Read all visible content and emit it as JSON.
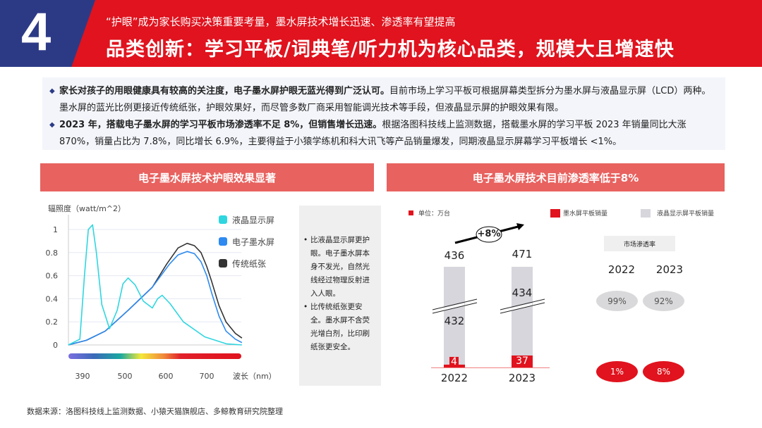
{
  "header": {
    "number": "4",
    "subtitle": "“护眼”成为家长购买决策重要考量，墨水屏技术增长迅速、渗透率有望提高",
    "title": "品类创新：学习平板/词典笔/听力机为核心品类，规模大且增速快",
    "colors": {
      "red": "#e0131e",
      "navy": "#2c3a86"
    }
  },
  "summary": [
    {
      "bold": "家长对孩子的用眼健康具有较高的关注度，电子墨水屏护眼无蓝光得到广泛认可。",
      "text": "目前市场上学习平板可根据屏幕类型拆分为墨水屏与液晶显示屏（LCD）两种。墨水屏的蓝光比例更接近传统纸张，护眼效果好，而尽管多数厂商采用智能调光技术等手段，但液晶显示屏的护眼效果有限。"
    },
    {
      "bold": "2023 年，搭载电子墨水屏的学习平板市场渗透率不足 8%，但销售增长迅速。",
      "text": "根据洛图科技线上监测数据，搭载墨水屏的学习平板 2023 年销量同比大涨 870%，销量占比为 7.8%，同比增长 6.9%，主要得益于小猿学练机和科大讯飞等产品销量爆发，同期液晶显示屏幕学习平板增长 <1%。"
    }
  ],
  "left_section": {
    "title": "电子墨水屏技术护眼效果显著",
    "notes": [
      "比液晶显示屏更护眼。电子墨水屏本身不发光，自然光线经过物理反射进入人眼。",
      "比传统纸张更安全。墨水屏不含荧光增白剂，比印刷纸张更安全。"
    ]
  },
  "right_section": {
    "title": "电子墨水屏技术目前渗透率低于8%"
  },
  "chart_data": [
    {
      "type": "line",
      "ylabel": "辐照度（watt/m^2）",
      "xlabel": "波长（nm）",
      "yticks": [
        "0",
        "0.2",
        "0.4",
        "0.6",
        "0.8",
        "1"
      ],
      "xticks": [
        "390",
        "500",
        "600",
        "700"
      ],
      "ylim": [
        0,
        1.1
      ],
      "grid": true,
      "legend": "top-right",
      "series": [
        {
          "name": "液晶显示屏",
          "color": "#2fd6e0",
          "points": [
            [
              353,
              0
            ],
            [
              383,
              0.05
            ],
            [
              395,
              0.6
            ],
            [
              405,
              1.0
            ],
            [
              416,
              1.04
            ],
            [
              426,
              0.8
            ],
            [
              440,
              0.35
            ],
            [
              460,
              0.14
            ],
            [
              480,
              0.3
            ],
            [
              495,
              0.53
            ],
            [
              508,
              0.58
            ],
            [
              525,
              0.52
            ],
            [
              545,
              0.38
            ],
            [
              567,
              0.32
            ],
            [
              580,
              0.4
            ],
            [
              591,
              0.43
            ],
            [
              610,
              0.36
            ],
            [
              643,
              0.2
            ],
            [
              695,
              0.07
            ],
            [
              748,
              0.01
            ],
            [
              786,
              0
            ]
          ]
        },
        {
          "name": "电子墨水屏",
          "color": "#2e8af0",
          "points": [
            [
              353,
              0
            ],
            [
              400,
              0.04
            ],
            [
              449,
              0.12
            ],
            [
              508,
              0.3
            ],
            [
              567,
              0.5
            ],
            [
              609,
              0.7
            ],
            [
              630,
              0.78
            ],
            [
              652,
              0.81
            ],
            [
              670,
              0.79
            ],
            [
              686,
              0.72
            ],
            [
              700,
              0.6
            ],
            [
              712,
              0.45
            ],
            [
              730,
              0.25
            ],
            [
              747,
              0.12
            ],
            [
              770,
              0.05
            ],
            [
              786,
              0.02
            ]
          ]
        },
        {
          "name": "传统纸张",
          "color": "#333333",
          "points": [
            [
              353,
              0
            ],
            [
              400,
              0.04
            ],
            [
              449,
              0.12
            ],
            [
              508,
              0.3
            ],
            [
              567,
              0.5
            ],
            [
              602,
              0.7
            ],
            [
              630,
              0.84
            ],
            [
              652,
              0.88
            ],
            [
              670,
              0.86
            ],
            [
              686,
              0.8
            ],
            [
              700,
              0.68
            ],
            [
              712,
              0.55
            ],
            [
              730,
              0.34
            ],
            [
              747,
              0.2
            ],
            [
              770,
              0.1
            ],
            [
              786,
              0.06
            ]
          ]
        }
      ]
    },
    {
      "type": "bar",
      "unit": "单位：万台",
      "categories": [
        "2022",
        "2023"
      ],
      "series": [
        {
          "name": "墨水屏平板销量",
          "color": "#e0131e",
          "values": [
            4,
            37
          ]
        },
        {
          "name": "液晶显示屏平板销量",
          "color": "#d6d6dc",
          "values": [
            432,
            434
          ]
        }
      ],
      "totals": [
        "436",
        "471"
      ],
      "growth": "+8%"
    },
    {
      "type": "table",
      "title": "市场渗透率",
      "categories": [
        "2022",
        "2023"
      ],
      "lcd": [
        "99%",
        "92%"
      ],
      "eink": [
        "1%",
        "8%"
      ]
    }
  ],
  "footer": "数据来源：洛图科技线上监测数据、小猿天猫旗舰店、多鲸教育研究院整理"
}
